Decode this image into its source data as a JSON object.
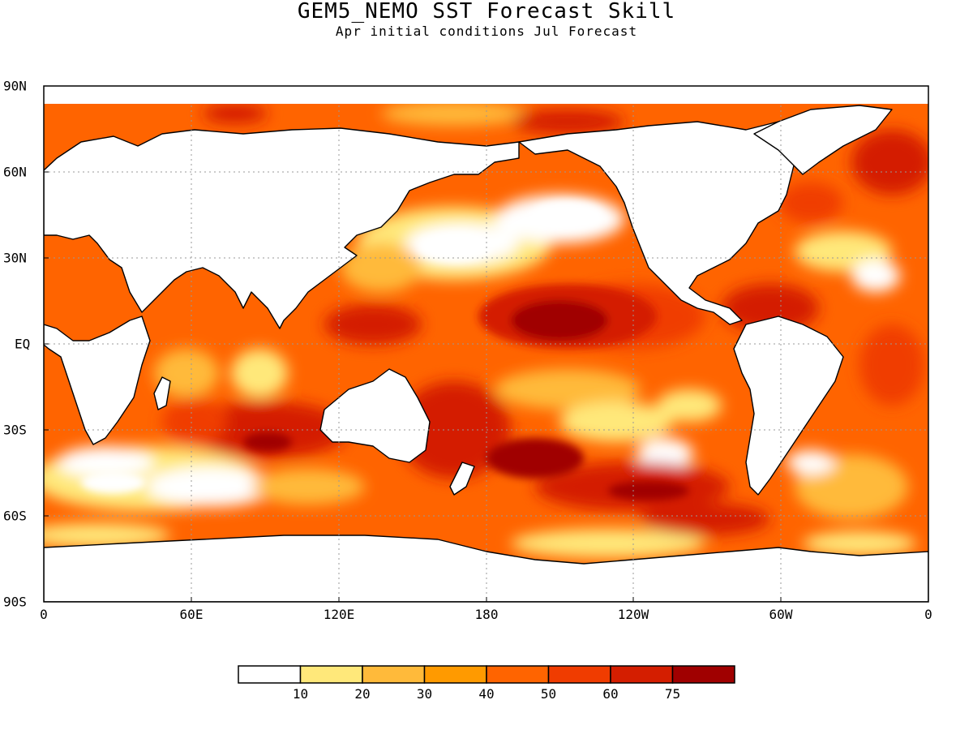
{
  "title": "GEM5_NEMO SST Forecast Skill",
  "subtitle": "Apr initial conditions  Jul Forecast",
  "map": {
    "lat_labels": [
      "90N",
      "60N",
      "30N",
      "EQ",
      "30S",
      "60S",
      "90S"
    ],
    "lon_labels": [
      "0",
      "60E",
      "120E",
      "180",
      "120W",
      "60W",
      "0"
    ]
  },
  "legend": {
    "labels": [
      "10",
      "20",
      "30",
      "40",
      "50",
      "60",
      "75"
    ],
    "colors": [
      "#ffffff",
      "#ffe87a",
      "#ffba3a",
      "#ff9a00",
      "#ff6400",
      "#f03c00",
      "#d41e00",
      "#a00000"
    ]
  },
  "colors": {
    "land": "#ffffff",
    "coast": "#000000",
    "grid": "#999999"
  }
}
